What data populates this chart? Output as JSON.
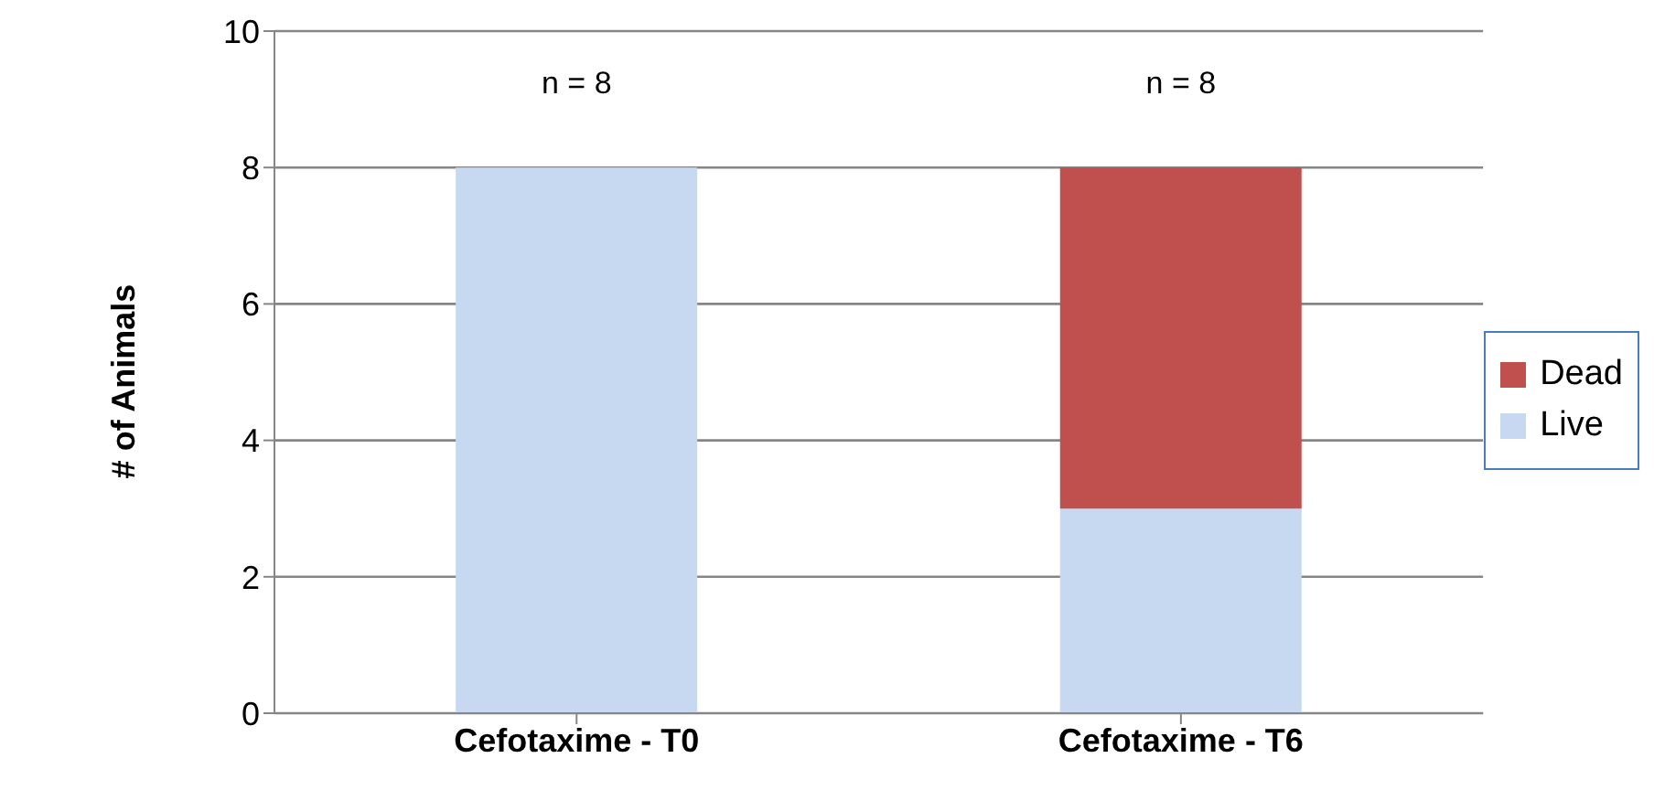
{
  "chart_data": {
    "type": "bar",
    "stacked": true,
    "ylabel": "# of Animals",
    "categories": [
      "Cefotaxime - T0",
      "Cefotaxime - T6"
    ],
    "series": [
      {
        "name": "Live",
        "color": "#c6d9f1",
        "values": [
          8,
          3
        ]
      },
      {
        "name": "Dead",
        "color": "#c0504d",
        "values": [
          0,
          5
        ]
      }
    ],
    "ylim": [
      0,
      10
    ],
    "yticks": [
      0,
      2,
      4,
      6,
      8,
      10
    ],
    "grid": "y",
    "legend": "right",
    "annotations": [
      "n = 8",
      "n = 8"
    ]
  }
}
